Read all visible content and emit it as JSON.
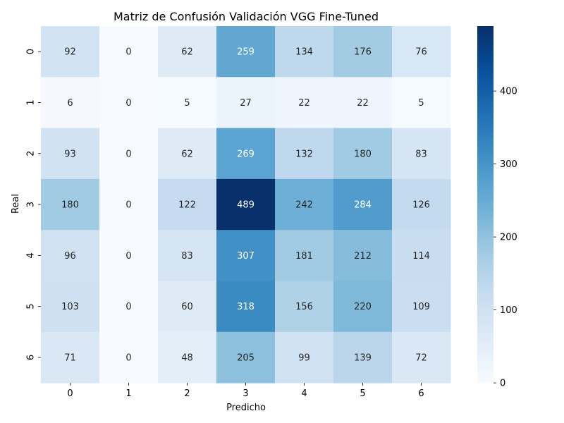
{
  "chart_data": {
    "type": "heatmap",
    "title": "Matriz de Confusión Validación VGG Fine-Tuned",
    "xlabel": "Predicho",
    "ylabel": "Real",
    "x_categories": [
      "0",
      "1",
      "2",
      "3",
      "4",
      "5",
      "6"
    ],
    "y_categories": [
      "0",
      "1",
      "2",
      "3",
      "4",
      "5",
      "6"
    ],
    "values": [
      [
        92,
        0,
        62,
        259,
        134,
        176,
        76
      ],
      [
        6,
        0,
        5,
        27,
        22,
        22,
        5
      ],
      [
        93,
        0,
        62,
        269,
        132,
        180,
        83
      ],
      [
        180,
        0,
        122,
        489,
        242,
        284,
        126
      ],
      [
        96,
        0,
        83,
        307,
        181,
        212,
        114
      ],
      [
        103,
        0,
        60,
        318,
        156,
        220,
        109
      ],
      [
        71,
        0,
        48,
        205,
        99,
        139,
        72
      ]
    ],
    "colormap": "Blues",
    "color_range": [
      0,
      489
    ],
    "colorbar_ticks": [
      0,
      100,
      200,
      300,
      400
    ],
    "legend": "colorbar-right",
    "grid": false
  }
}
